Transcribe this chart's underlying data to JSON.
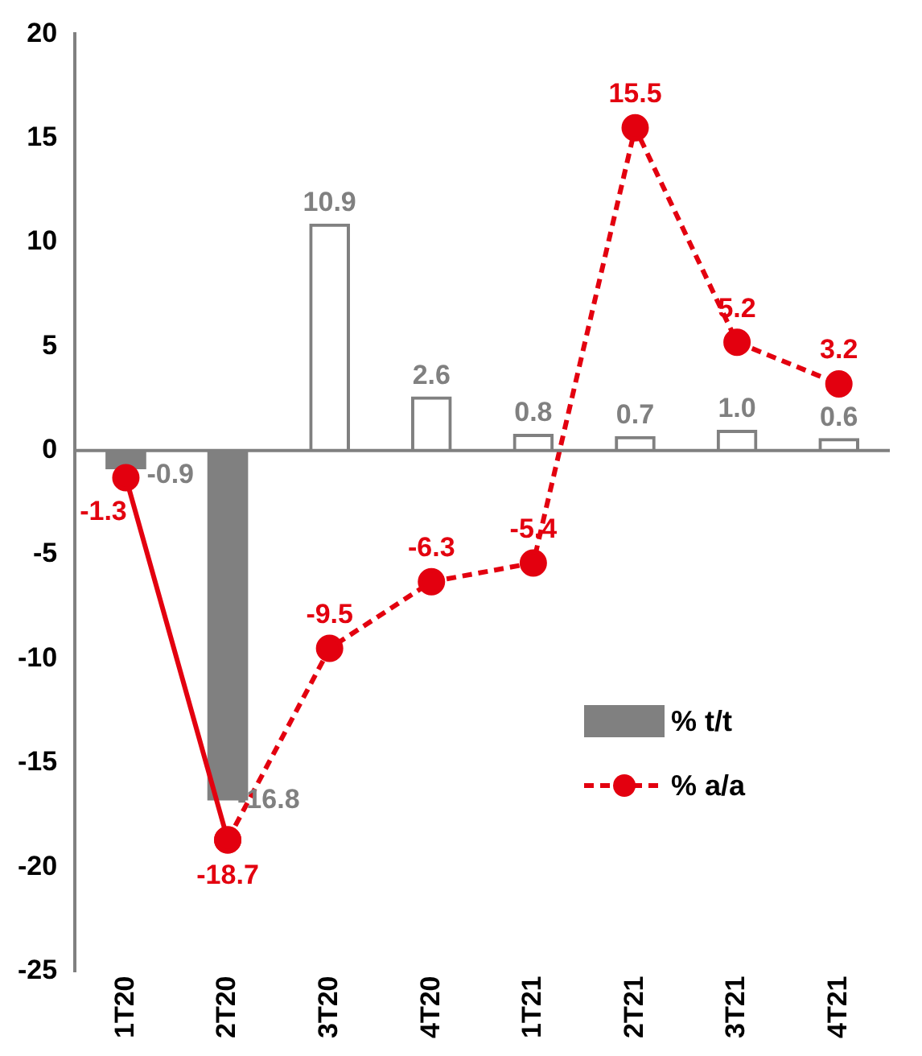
{
  "chart_data": {
    "type": "bar",
    "categories": [
      "1T20",
      "2T20",
      "3T20",
      "4T20",
      "1T21",
      "2T21",
      "3T21",
      "4T21"
    ],
    "series": [
      {
        "name": "% t/t",
        "color": "#808080",
        "values": [
          -0.9,
          -16.8,
          null,
          null,
          null,
          null,
          null,
          null
        ],
        "value_labels": [
          "-0.9",
          "-16.8",
          null,
          null,
          null,
          null,
          null,
          null
        ]
      },
      {
        "color": "#808080",
        "line_style": "dashed",
        "values": [
          null,
          null,
          10.9,
          2.6,
          0.8,
          0.7,
          1.0,
          0.6
        ],
        "value_labels": [
          null,
          null,
          "10.9",
          "2.6",
          "0.8",
          "0.7",
          "1.0",
          "0.6"
        ]
      },
      {
        "type": "line",
        "color": "#e3000f",
        "line_style": "solid",
        "marker": "circle",
        "values": [
          -1.3,
          -18.7,
          null,
          null,
          null,
          null,
          null,
          null
        ],
        "value_labels": [
          "-1.3",
          null,
          null,
          null,
          null,
          null,
          null,
          null
        ]
      },
      {
        "name": "% a/a",
        "type": "line",
        "color": "#e3000f",
        "line_style": "dashed",
        "marker": "circle",
        "values": [
          null,
          -18.7,
          -9.5,
          -6.3,
          -5.4,
          15.5,
          5.2,
          3.2
        ],
        "value_labels": [
          null,
          "-18.7",
          "-9.5",
          "-6.3",
          "-5.4",
          "15.5",
          "5.2",
          "3.2"
        ]
      }
    ],
    "ylim": [
      -25,
      20
    ],
    "yticks": [
      -25,
      -20,
      -15,
      -10,
      -5,
      0,
      5,
      10,
      15,
      20
    ],
    "legend": "bottom right"
  }
}
